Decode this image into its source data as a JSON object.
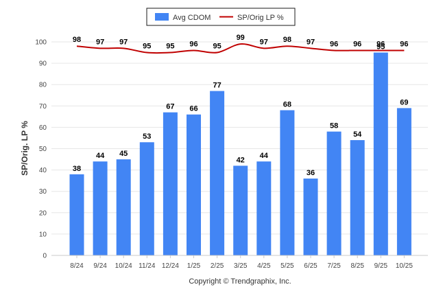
{
  "chart_data": {
    "type": "bar",
    "categories": [
      "8/24",
      "9/24",
      "10/24",
      "11/24",
      "12/24",
      "1/25",
      "2/25",
      "3/25",
      "4/25",
      "5/25",
      "6/25",
      "7/25",
      "8/25",
      "9/25",
      "10/25"
    ],
    "series": [
      {
        "name": "Avg CDOM",
        "kind": "bar",
        "color": "#4285f4",
        "values": [
          38,
          44,
          45,
          53,
          67,
          66,
          77,
          42,
          44,
          68,
          36,
          58,
          54,
          95,
          69
        ]
      },
      {
        "name": "SP/Orig LP %",
        "kind": "line",
        "color": "#c00000",
        "values": [
          98,
          97,
          97,
          95,
          95,
          96,
          95,
          99,
          97,
          98,
          97,
          96,
          96,
          96,
          96
        ]
      }
    ],
    "ylabel": "SP/Orig. LP %",
    "ylim": [
      0,
      100
    ],
    "yticks": [
      0,
      10,
      20,
      30,
      40,
      50,
      60,
      70,
      80,
      90,
      100
    ],
    "grid": true,
    "legend_position": "top-center"
  },
  "credit": "Copyright © Trendgraphix, Inc."
}
